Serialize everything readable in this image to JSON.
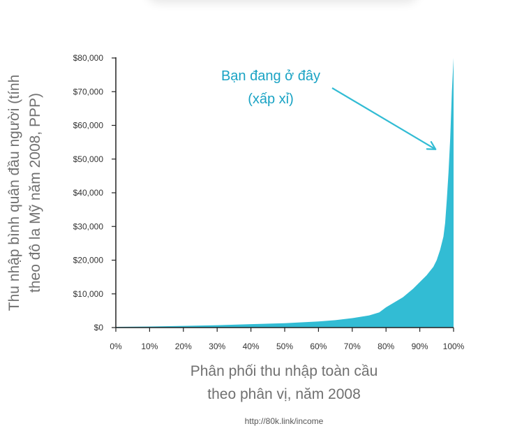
{
  "chart_data": {
    "type": "area",
    "ylabel": "Thu nhập bình quân đầu người (tính theo đô la Mỹ năm 2008, PPP)",
    "ylabel_lines": [
      "Thu nhập bình quân đầu người (tính",
      "theo đô la Mỹ năm 2008, PPP)"
    ],
    "xlabel": "Phân phối thu nhập toàn cầu theo phân vị, năm 2008",
    "xlabel_lines": [
      "Phân phối thu nhập toàn cầu",
      "theo phân vị, năm 2008"
    ],
    "ylim": [
      0,
      80000
    ],
    "xlim": [
      0,
      100
    ],
    "y_ticks": [
      {
        "value": 0,
        "label": "$0"
      },
      {
        "value": 10000,
        "label": "$10,000"
      },
      {
        "value": 20000,
        "label": "$20,000"
      },
      {
        "value": 30000,
        "label": "$30,000"
      },
      {
        "value": 40000,
        "label": "$40,000"
      },
      {
        "value": 50000,
        "label": "$50,000"
      },
      {
        "value": 60000,
        "label": "$60,000"
      },
      {
        "value": 70000,
        "label": "$70,000"
      },
      {
        "value": 80000,
        "label": "$80,000"
      }
    ],
    "x_ticks": [
      {
        "value": 0,
        "label": "0%"
      },
      {
        "value": 10,
        "label": "10%"
      },
      {
        "value": 20,
        "label": "20%"
      },
      {
        "value": 30,
        "label": "30%"
      },
      {
        "value": 40,
        "label": "40%"
      },
      {
        "value": 50,
        "label": "50%"
      },
      {
        "value": 60,
        "label": "60%"
      },
      {
        "value": 70,
        "label": "70%"
      },
      {
        "value": 80,
        "label": "80%"
      },
      {
        "value": 90,
        "label": "90%"
      },
      {
        "value": 100,
        "label": "100%"
      }
    ],
    "series": [
      {
        "color": "#32bcd4",
        "x": [
          0,
          10,
          20,
          30,
          40,
          50,
          60,
          65,
          70,
          75,
          78,
          80,
          85,
          88,
          90,
          92,
          94,
          95,
          96,
          97,
          97.5,
          98,
          98.5,
          99,
          99.5,
          100
        ],
        "y": [
          200,
          300,
          500,
          700,
          1000,
          1300,
          1800,
          2200,
          2800,
          3600,
          4500,
          6000,
          9000,
          11500,
          13500,
          15500,
          18000,
          20000,
          23000,
          27000,
          31000,
          38000,
          46000,
          56000,
          70000,
          80000
        ]
      }
    ],
    "annotation": {
      "lines": [
        "Bạn đang ở đây",
        "(xấp xỉ)"
      ],
      "points_to": {
        "x": 94.5,
        "y": 53000
      }
    },
    "colors": {
      "fill": "#32bcd4",
      "annotation": "#1aa3c4",
      "axis": "#222222"
    }
  },
  "source_text": "http://80k.link/income"
}
